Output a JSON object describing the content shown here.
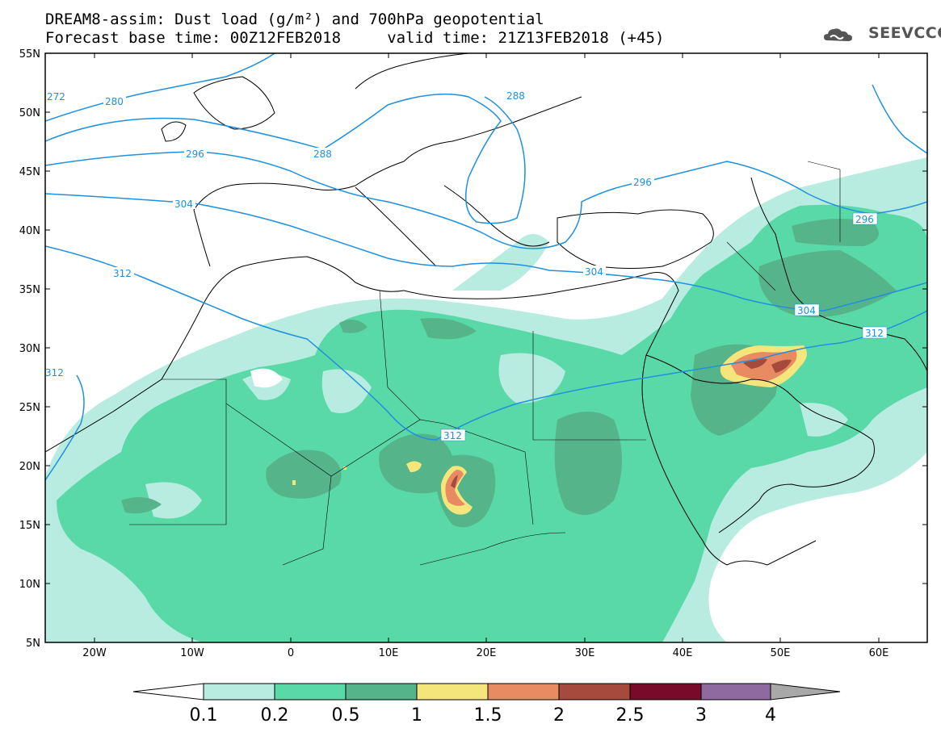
{
  "header": {
    "line1": "DREAM8-assim: Dust load (g/m²) and 700hPa geopotential",
    "line2": "Forecast base time: 00Z12FEB2018     valid time: 21Z13FEB2018 (+45)",
    "logo_text": "SEEVCCC"
  },
  "map": {
    "lat_labels": [
      "55N",
      "50N",
      "45N",
      "40N",
      "35N",
      "30N",
      "25N",
      "20N",
      "15N",
      "10N",
      "5N"
    ],
    "lon_labels": [
      "20W",
      "10W",
      "0",
      "10E",
      "20E",
      "30E",
      "40E",
      "50E",
      "60E"
    ],
    "lat_range": [
      5,
      55
    ],
    "lon_range": [
      -25,
      65
    ],
    "geopotential_labels": [
      "272",
      "280",
      "288",
      "288",
      "296",
      "296",
      "296",
      "304",
      "304",
      "304",
      "312",
      "312",
      "312",
      "312"
    ]
  },
  "colorbar": {
    "labels": [
      "0.1",
      "0.2",
      "0.5",
      "1",
      "1.5",
      "2",
      "2.5",
      "3",
      "4"
    ],
    "colors": [
      "#b8ece0",
      "#5ad9a8",
      "#56b48a",
      "#f5e67c",
      "#e88a62",
      "#a64a3e",
      "#7a0a2a",
      "#8e6aa0",
      "#a8a8a8"
    ]
  },
  "colors": {
    "contour": "#1e90e0",
    "c01": "#b8ece0",
    "c02": "#5ad9a8",
    "c05": "#56b48a",
    "c1": "#f5e67c",
    "c15": "#e88a62",
    "c2": "#a64a3e"
  }
}
